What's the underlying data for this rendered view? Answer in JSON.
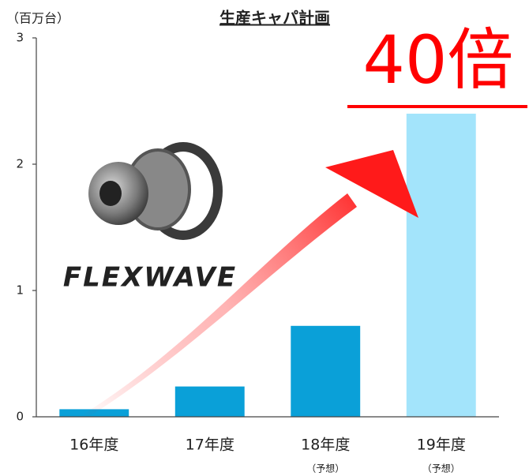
{
  "chart_data": {
    "type": "bar",
    "title": "生産キャパ計画",
    "y_unit_label": "（百万台）",
    "annotation": "40倍",
    "logo": "FLEXWAVE",
    "categories": [
      "16年度",
      "17年度",
      "18年度",
      "19年度"
    ],
    "category_notes": [
      null,
      null,
      "（予想）",
      "（予想）"
    ],
    "values": [
      0.06,
      0.24,
      0.72,
      2.4
    ],
    "colors": [
      "#0aa0d8",
      "#0aa0d8",
      "#0aa0d8",
      "#a3e4fb"
    ],
    "ylim": [
      0,
      3
    ],
    "yticks": [
      0,
      1,
      2,
      3
    ],
    "grid": false
  }
}
